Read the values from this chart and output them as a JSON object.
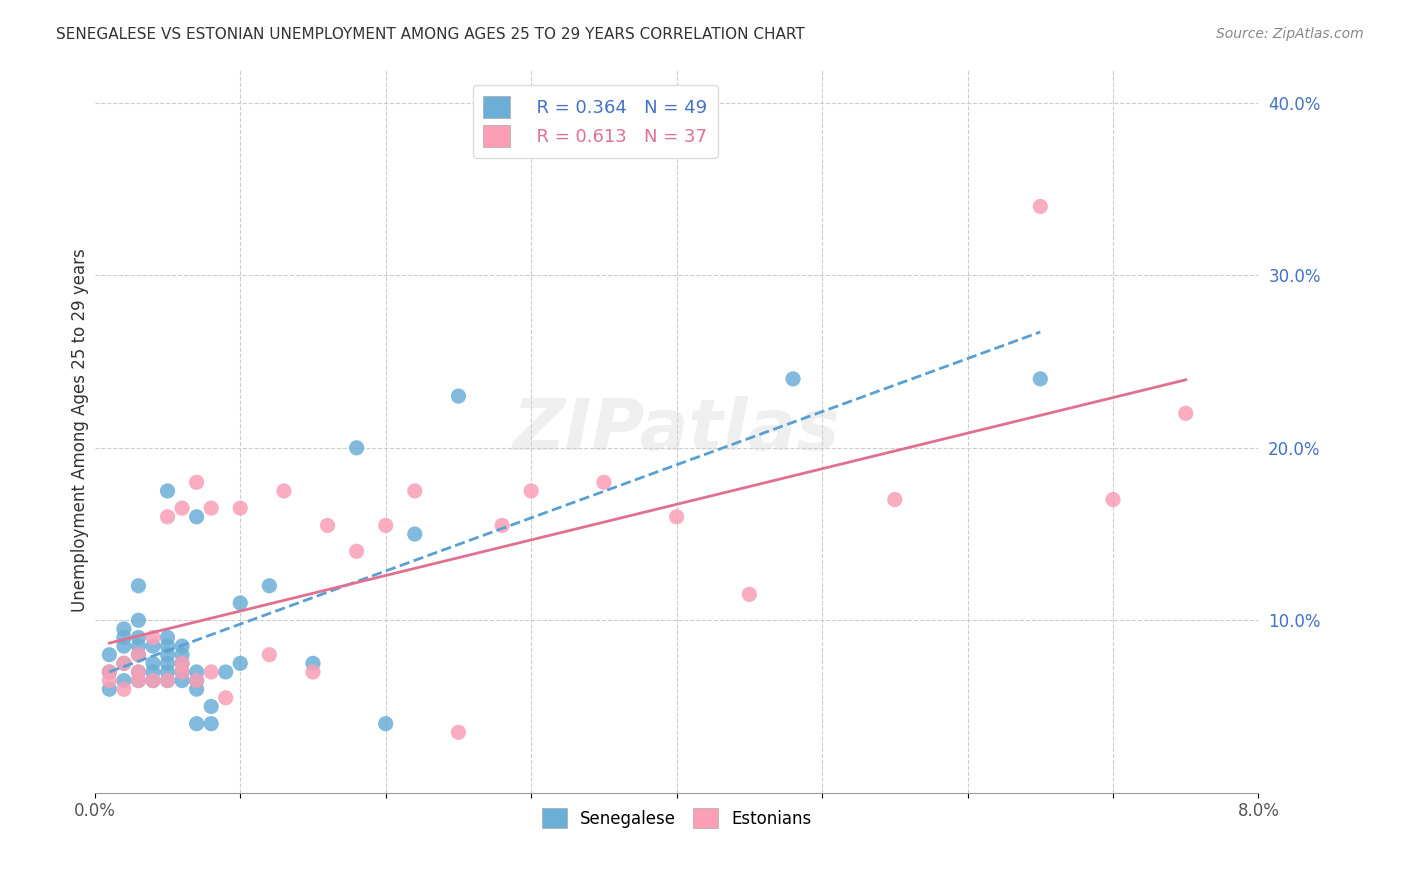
{
  "title": "SENEGALESE VS ESTONIAN UNEMPLOYMENT AMONG AGES 25 TO 29 YEARS CORRELATION CHART",
  "source": "Source: ZipAtlas.com",
  "xlabel": "",
  "ylabel": "Unemployment Among Ages 25 to 29 years",
  "xlim": [
    0.0,
    0.08
  ],
  "ylim": [
    0.0,
    0.42
  ],
  "xticks": [
    0.0,
    0.01,
    0.02,
    0.03,
    0.04,
    0.05,
    0.06,
    0.07,
    0.08
  ],
  "yticks_right": [
    0.1,
    0.2,
    0.3,
    0.4
  ],
  "legend_r1": "R = 0.364",
  "legend_n1": "N = 49",
  "legend_r2": "R = 0.613",
  "legend_n2": "N = 37",
  "blue_color": "#6baed6",
  "pink_color": "#fa9fb5",
  "blue_dark": "#2171b5",
  "pink_dark": "#c51b8a",
  "watermark": "ZIPatlas",
  "senegalese_x": [
    0.001,
    0.001,
    0.001,
    0.002,
    0.002,
    0.002,
    0.002,
    0.002,
    0.003,
    0.003,
    0.003,
    0.003,
    0.003,
    0.003,
    0.003,
    0.004,
    0.004,
    0.004,
    0.004,
    0.005,
    0.005,
    0.005,
    0.005,
    0.005,
    0.005,
    0.005,
    0.006,
    0.006,
    0.006,
    0.006,
    0.006,
    0.007,
    0.007,
    0.007,
    0.007,
    0.007,
    0.008,
    0.008,
    0.009,
    0.01,
    0.01,
    0.012,
    0.015,
    0.018,
    0.02,
    0.022,
    0.025,
    0.048,
    0.065
  ],
  "senegalese_y": [
    0.06,
    0.07,
    0.08,
    0.065,
    0.075,
    0.085,
    0.09,
    0.095,
    0.065,
    0.07,
    0.08,
    0.085,
    0.09,
    0.1,
    0.12,
    0.065,
    0.07,
    0.075,
    0.085,
    0.065,
    0.07,
    0.075,
    0.08,
    0.085,
    0.09,
    0.175,
    0.065,
    0.07,
    0.075,
    0.08,
    0.085,
    0.04,
    0.06,
    0.065,
    0.07,
    0.16,
    0.04,
    0.05,
    0.07,
    0.075,
    0.11,
    0.12,
    0.075,
    0.2,
    0.04,
    0.15,
    0.23,
    0.24,
    0.24
  ],
  "estonian_x": [
    0.001,
    0.001,
    0.002,
    0.002,
    0.003,
    0.003,
    0.003,
    0.004,
    0.004,
    0.005,
    0.005,
    0.006,
    0.006,
    0.006,
    0.007,
    0.007,
    0.008,
    0.008,
    0.009,
    0.01,
    0.012,
    0.013,
    0.015,
    0.016,
    0.018,
    0.02,
    0.022,
    0.025,
    0.028,
    0.03,
    0.035,
    0.04,
    0.045,
    0.055,
    0.065,
    0.07,
    0.075
  ],
  "estonian_y": [
    0.065,
    0.07,
    0.06,
    0.075,
    0.065,
    0.07,
    0.08,
    0.065,
    0.09,
    0.065,
    0.16,
    0.07,
    0.075,
    0.165,
    0.065,
    0.18,
    0.07,
    0.165,
    0.055,
    0.165,
    0.08,
    0.175,
    0.07,
    0.155,
    0.14,
    0.155,
    0.175,
    0.035,
    0.155,
    0.175,
    0.18,
    0.16,
    0.115,
    0.17,
    0.34,
    0.17,
    0.22
  ]
}
